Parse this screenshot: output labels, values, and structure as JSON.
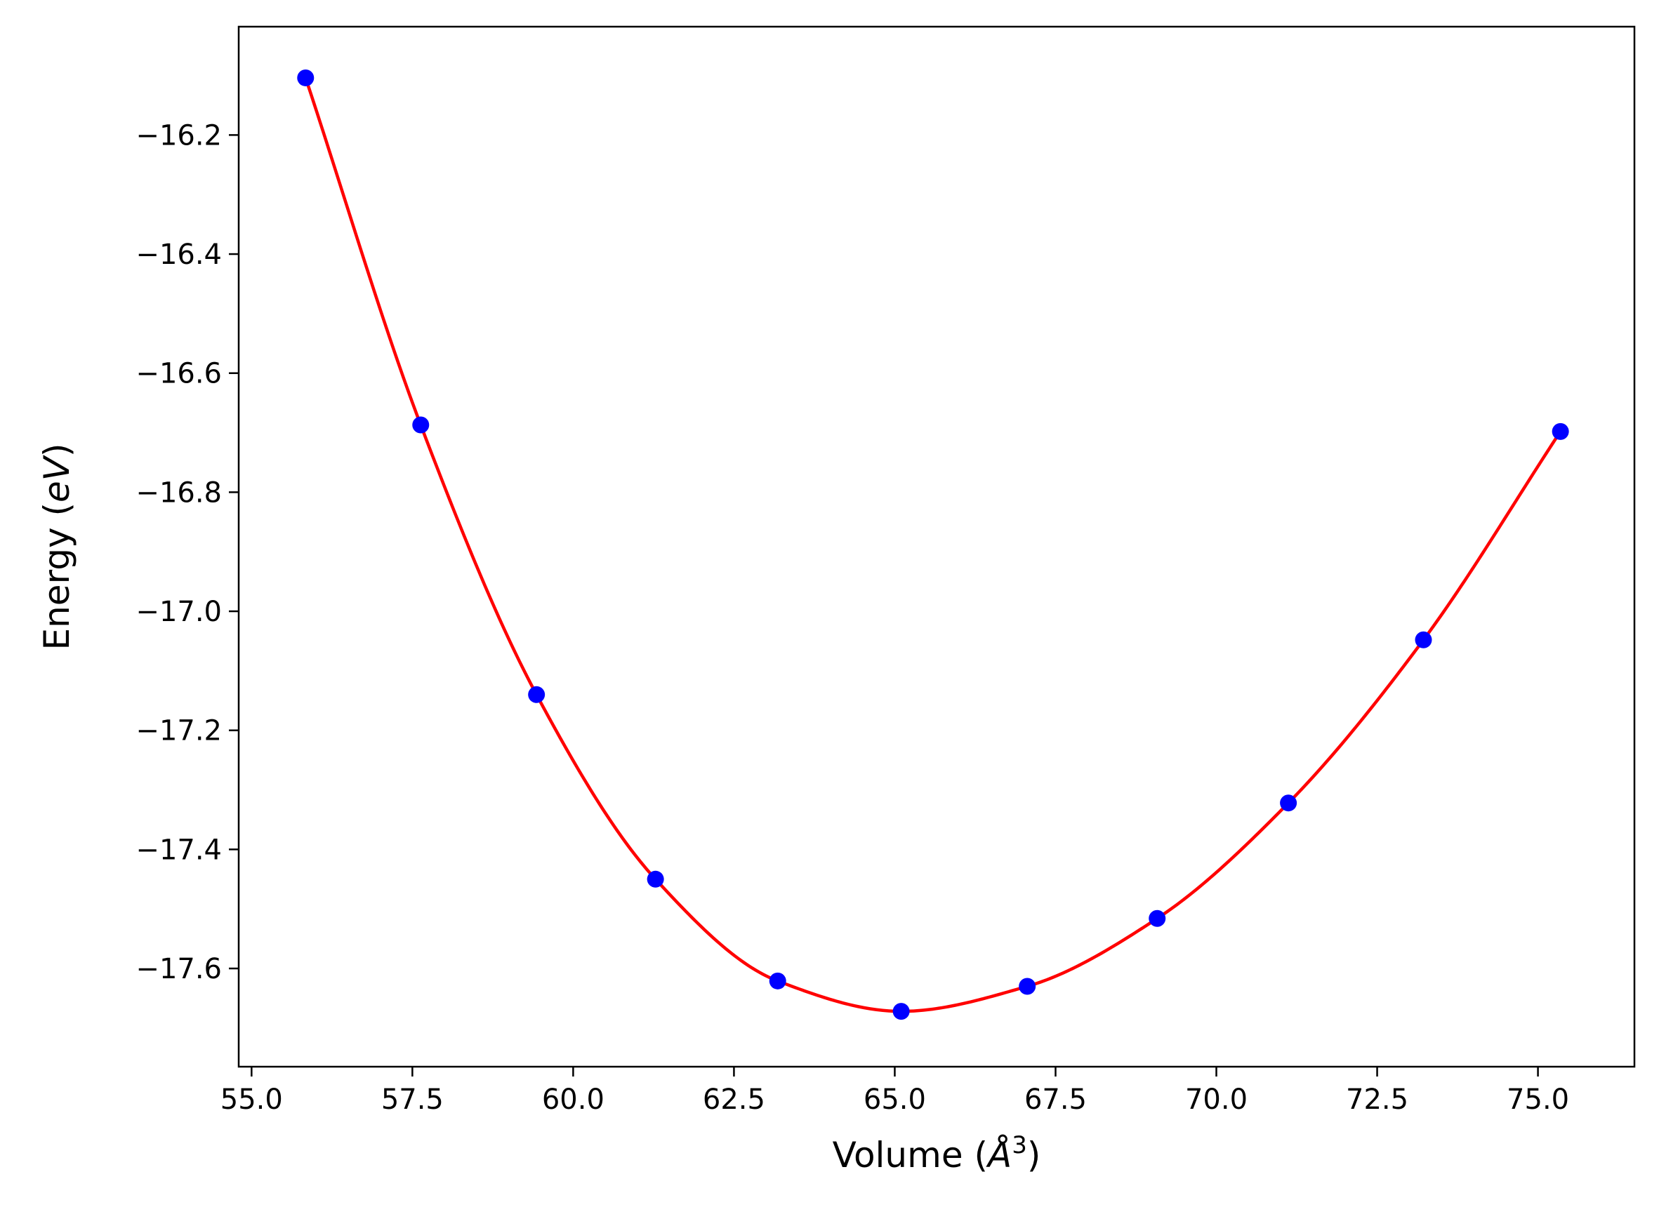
{
  "chart_data": {
    "type": "scatter",
    "title": "",
    "xlabel": {
      "pre": "Volume (",
      "sym": "Å",
      "sup": "3",
      "post": ")"
    },
    "ylabel": {
      "pre": "Energy (",
      "ital": "eV",
      "post": ")"
    },
    "xlim": [
      54.8,
      76.5
    ],
    "ylim": [
      -17.765,
      -16.018
    ],
    "grid": false,
    "legend": "none",
    "x_ticks": [
      55.0,
      57.5,
      60.0,
      62.5,
      65.0,
      67.5,
      70.0,
      72.5,
      75.0
    ],
    "x_tick_labels": [
      "55.0",
      "57.5",
      "60.0",
      "62.5",
      "65.0",
      "67.5",
      "70.0",
      "72.5",
      "75.0"
    ],
    "y_ticks": [
      -16.2,
      -16.4,
      -16.6,
      -16.8,
      -17.0,
      -17.2,
      -17.4,
      -17.6
    ],
    "y_tick_labels": [
      "−16.2",
      "−16.4",
      "−16.6",
      "−16.8",
      "−17.0",
      "−17.2",
      "−17.4",
      "−17.6"
    ],
    "series": [
      {
        "type": "scatter",
        "color": "#0000ff",
        "x": [
          55.84,
          57.63,
          59.43,
          61.28,
          63.18,
          65.1,
          67.06,
          69.08,
          71.12,
          73.22,
          75.35
        ],
        "y": [
          -16.104,
          -16.687,
          -17.14,
          -17.45,
          -17.621,
          -17.672,
          -17.63,
          -17.516,
          -17.322,
          -17.048,
          -16.698
        ]
      },
      {
        "type": "line",
        "color": "#ff0000",
        "x": [
          55.84,
          57.63,
          59.43,
          61.28,
          63.18,
          65.1,
          67.06,
          69.08,
          71.12,
          73.22,
          75.35
        ],
        "y": [
          -16.104,
          -16.687,
          -17.14,
          -17.45,
          -17.621,
          -17.672,
          -17.63,
          -17.516,
          -17.322,
          -17.048,
          -16.698
        ]
      }
    ]
  }
}
